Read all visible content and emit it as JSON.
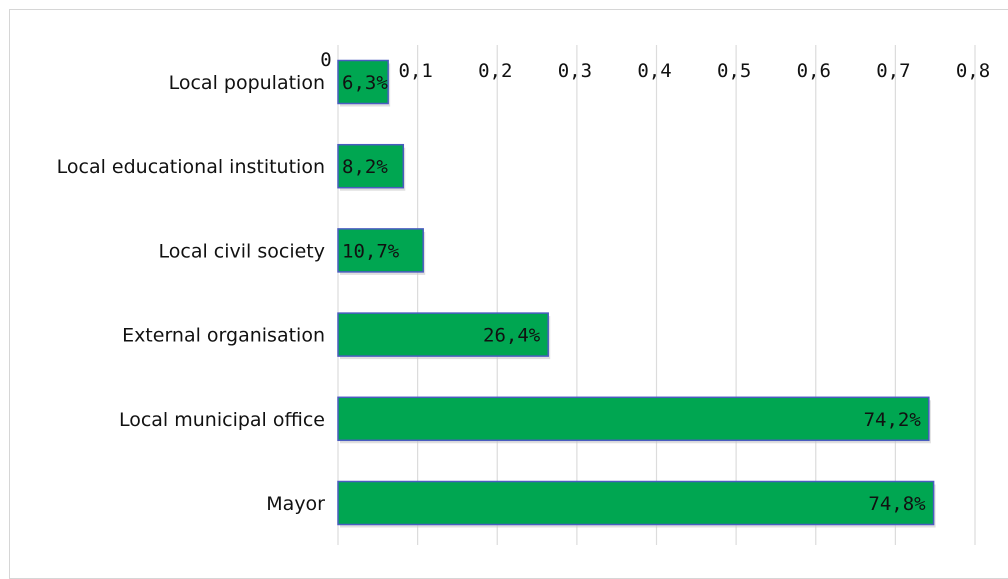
{
  "chart_data": {
    "type": "bar",
    "orientation": "horizontal",
    "categories": [
      "Local population",
      "Local educational institution",
      "Local civil society",
      "External organisation",
      "Local municipal office",
      "Mayor"
    ],
    "values": [
      0.063,
      0.082,
      0.107,
      0.264,
      0.742,
      0.748
    ],
    "data_labels": [
      "6,3%",
      "8,2%",
      "10,7%",
      "26,4%",
      "74,2%",
      "74,8%"
    ],
    "x_ticks": [
      "0",
      "0,1",
      "0,2",
      "0,3",
      "0,4",
      "0,5",
      "0,6",
      "0,7",
      "0,8"
    ],
    "xlim": [
      0,
      0.8
    ],
    "x_axis_position": "top",
    "grid": true,
    "bar_color": "#00a651",
    "bar_edge_color": "#4a5cc0",
    "title": "",
    "xlabel": "",
    "ylabel": ""
  }
}
